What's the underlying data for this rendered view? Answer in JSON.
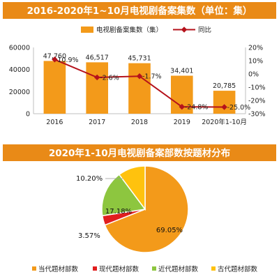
{
  "colors": {
    "banner": "#e98a17",
    "bar": "#f39a1a",
    "line": "#b5121b",
    "axis": "#bfbfbf"
  },
  "top": {
    "title": "2016-2020年1~10月电视剧备案集数（单位：集）",
    "legend_bar": "电视剧备案集数（集）",
    "legend_line": "同比"
  },
  "bottom": {
    "title": "2020年1-10月电视剧备案部数按题材分布"
  },
  "chart_data": [
    {
      "type": "bar",
      "title": "2016-2020年1~10月电视剧备案集数（单位：集）",
      "categories": [
        "2016",
        "2017",
        "2018",
        "2019",
        "2020年1-10月"
      ],
      "series": [
        {
          "name": "电视剧备案集数（集）",
          "values": [
            47760,
            46517,
            45731,
            34401,
            20785
          ],
          "labels": [
            "47,760",
            "46,517",
            "45,731",
            "34,401",
            "20,785"
          ]
        },
        {
          "name": "同比",
          "type": "line",
          "axis": "right",
          "values": [
            10.9,
            -2.6,
            -1.7,
            -24.8,
            -25.0
          ],
          "labels": [
            "10.9%",
            "-2.6%",
            "-1.7%",
            "-24.8%",
            "-25.0%"
          ]
        }
      ],
      "ylim": [
        0,
        60000
      ],
      "yticks": [
        "0",
        "20000",
        "40000",
        "60000"
      ],
      "y2lim": [
        -30,
        20
      ],
      "y2ticks": [
        "20%",
        "10%",
        "0%",
        "-10%",
        "-20%",
        "-30%"
      ],
      "legend": "top"
    },
    {
      "type": "pie",
      "title": "2020年1-10月电视剧备案部数按题材分布",
      "slices": [
        {
          "name": "当代题材部数",
          "value": 69.05,
          "label": "69.05%",
          "color": "#f39a1a"
        },
        {
          "name": "现代题材部数",
          "value": 3.57,
          "label": "3.57%",
          "color": "#e11e1e"
        },
        {
          "name": "近代题材部数",
          "value": 17.18,
          "label": "17.18%",
          "color": "#8dc63f"
        },
        {
          "name": "古代题材部数",
          "value": 10.2,
          "label": "10.20%",
          "color": "#ffc20e"
        }
      ],
      "legend": "bottom"
    }
  ]
}
